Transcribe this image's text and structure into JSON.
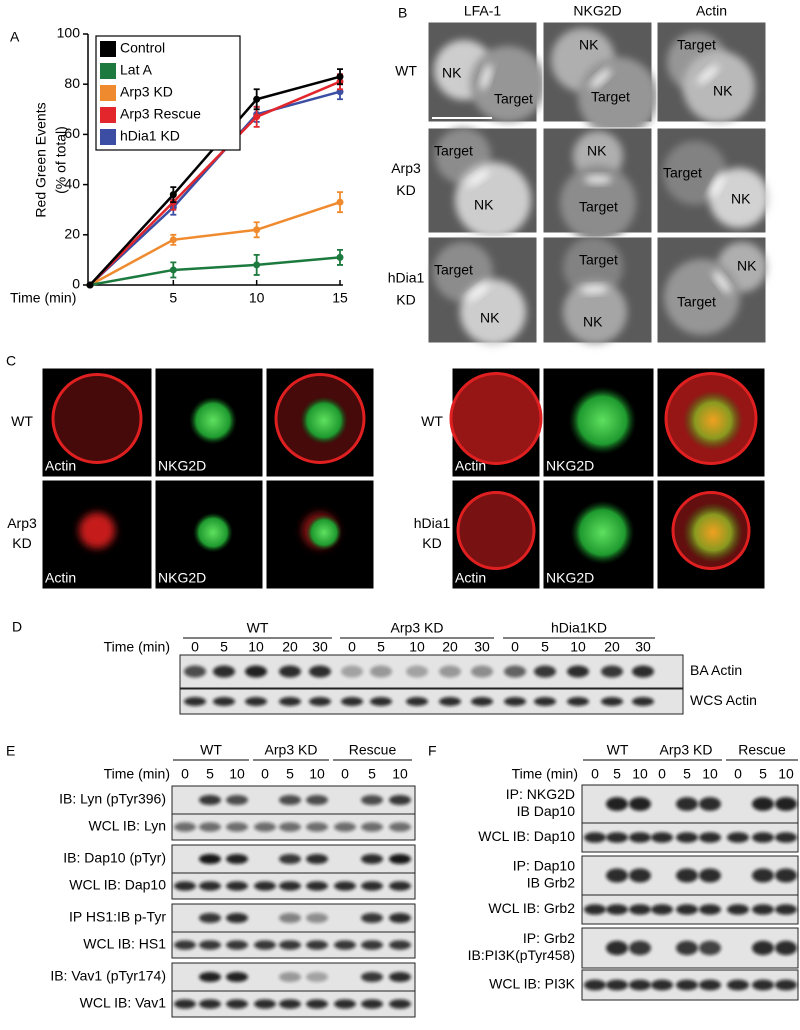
{
  "chart_data": {
    "type": "line",
    "panel_label": "A",
    "y_label": [
      "Red Green Events",
      "(% of total)"
    ],
    "x_label": "Time (min)",
    "x": [
      0,
      5,
      10,
      15
    ],
    "xlim": [
      0,
      15
    ],
    "xticks": [
      5,
      10,
      15
    ],
    "ylim": [
      0,
      100
    ],
    "yticks": [
      0,
      20,
      40,
      60,
      80,
      100
    ],
    "legend": "upper left",
    "series": [
      {
        "name": "Control",
        "color": "#000000",
        "values": [
          0,
          36,
          74,
          83
        ],
        "errors": [
          0,
          3,
          4,
          3
        ]
      },
      {
        "name": "Lat A",
        "color": "#1d7a3e",
        "values": [
          0,
          6,
          8,
          11
        ],
        "errors": [
          0,
          3,
          4,
          3
        ]
      },
      {
        "name": "Arp3 KD",
        "color": "#f08a2e",
        "values": [
          0,
          18,
          22,
          33
        ],
        "errors": [
          0,
          2,
          3,
          4
        ]
      },
      {
        "name": "Arp3 Rescue",
        "color": "#e2262b",
        "values": [
          0,
          33,
          67,
          81
        ],
        "errors": [
          0,
          3,
          4,
          3
        ]
      },
      {
        "name": "hDia1 KD",
        "color": "#3b4ea3",
        "values": [
          0,
          31,
          68,
          77
        ],
        "errors": [
          0,
          3,
          3,
          3
        ]
      }
    ]
  },
  "panel_b": {
    "label": "B",
    "columns": [
      "LFA-1",
      "NKG2D",
      "Actin"
    ],
    "rows": [
      {
        "label": [
          "WT"
        ],
        "images": [
          [
            "NK",
            "Target"
          ],
          [
            "NK",
            "Target"
          ],
          [
            "Target",
            "NK"
          ]
        ]
      },
      {
        "label": [
          "Arp3",
          "KD"
        ],
        "images": [
          [
            "Target",
            "NK"
          ],
          [
            "NK",
            "Target"
          ],
          [
            "Target",
            "NK"
          ]
        ]
      },
      {
        "label": [
          "hDia1",
          "KD"
        ],
        "images": [
          [
            "Target",
            "NK"
          ],
          [
            "Target",
            "NK"
          ],
          [
            "NK",
            "Target"
          ]
        ]
      }
    ]
  },
  "panel_c": {
    "label": "C",
    "groups": [
      {
        "rows": [
          {
            "label": [
              "WT"
            ],
            "channels": [
              "Actin",
              "NKG2D"
            ]
          },
          {
            "label": [
              "Arp3",
              "KD"
            ],
            "channels": [
              "Actin",
              "NKG2D"
            ]
          }
        ]
      },
      {
        "rows": [
          {
            "label": [
              "WT"
            ],
            "channels": [
              "Actin",
              "NKG2D"
            ]
          },
          {
            "label": [
              "hDia1",
              "KD"
            ],
            "channels": [
              "Actin",
              "NKG2D"
            ]
          }
        ]
      }
    ]
  },
  "panel_d": {
    "label": "D",
    "time_label": "Time (min)",
    "groups": [
      {
        "name": "WT",
        "times": [
          0,
          5,
          10,
          20,
          30
        ]
      },
      {
        "name": "Arp3 KD",
        "times": [
          0,
          5,
          10,
          20,
          30
        ]
      },
      {
        "name": "hDia1KD",
        "times": [
          0,
          5,
          10,
          20,
          30
        ]
      }
    ],
    "rows": [
      "BA Actin",
      "WCS Actin"
    ]
  },
  "panel_e": {
    "label": "E",
    "time_label": "Time (min)",
    "groups": [
      {
        "name": "WT",
        "times": [
          0,
          5,
          10
        ]
      },
      {
        "name": "Arp3 KD",
        "times": [
          0,
          5,
          10
        ]
      },
      {
        "name": "Rescue",
        "times": [
          0,
          5,
          10
        ]
      }
    ],
    "rows": [
      [
        "IB: Lyn (pTyr396)"
      ],
      [
        "WCL IB: Lyn"
      ],
      [
        "IB: Dap10 (pTyr)"
      ],
      [
        "WCL IB: Dap10"
      ],
      [
        "IP HS1:IB p-Tyr"
      ],
      [
        "WCL IB: HS1"
      ],
      [
        "IB: Vav1 (pTyr174)"
      ],
      [
        "WCL IB: Vav1"
      ]
    ]
  },
  "panel_f": {
    "label": "F",
    "time_label": "Time (min)",
    "groups": [
      {
        "name": "WT",
        "times": [
          0,
          5,
          10
        ]
      },
      {
        "name": "Arp3 KD",
        "times": [
          0,
          5,
          10
        ]
      },
      {
        "name": "Rescue",
        "times": [
          0,
          5,
          10
        ]
      }
    ],
    "rows": [
      [
        "IP: NKG2D",
        "IB Dap10"
      ],
      [
        "WCL IB: Dap10"
      ],
      [
        "IP: Dap10",
        "IB Grb2"
      ],
      [
        "WCL IB: Grb2"
      ],
      [
        "IP: Grb2",
        "IB:PI3K(pTyr458)"
      ],
      [
        "WCL IB: PI3K"
      ]
    ]
  }
}
